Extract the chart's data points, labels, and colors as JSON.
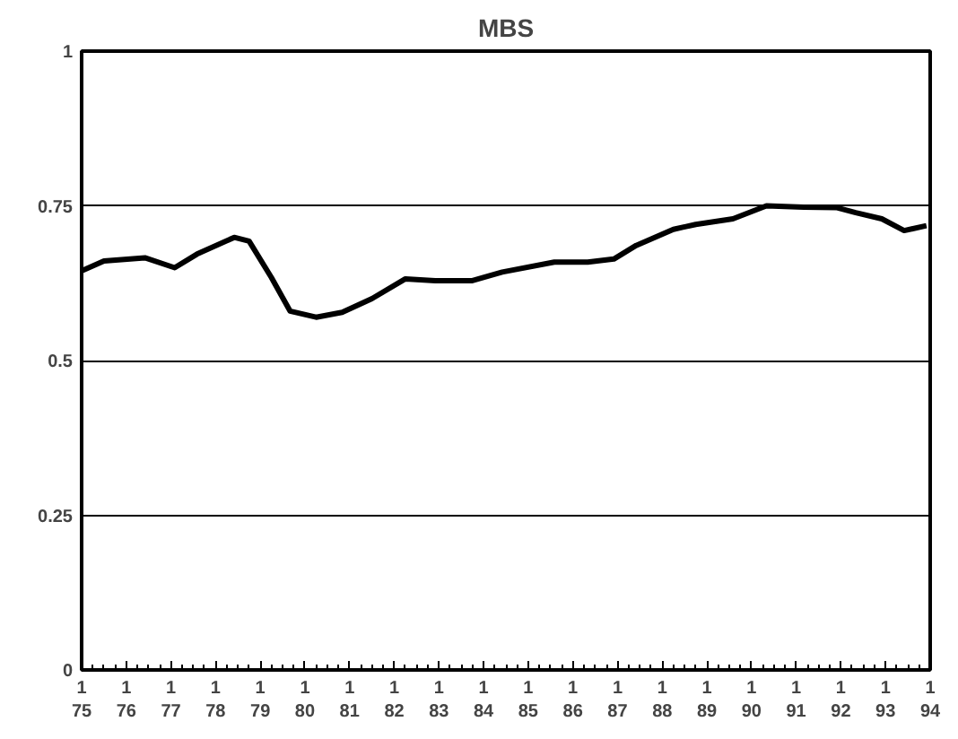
{
  "chart_data": {
    "type": "line",
    "title": "MBS",
    "x": [
      "1975-01",
      "1975-07",
      "1976-06",
      "1977-02",
      "1977-08",
      "1978-06",
      "1978-10",
      "1979-04",
      "1979-09",
      "1980-04",
      "1980-11",
      "1981-07",
      "1982-04",
      "1982-12",
      "1983-10",
      "1984-06",
      "1985-08",
      "1986-05",
      "1986-12",
      "1987-06",
      "1988-04",
      "1988-10",
      "1989-08",
      "1990-05",
      "1991-03",
      "1991-12",
      "1992-05",
      "1992-12",
      "1993-06",
      "1993-12"
    ],
    "series": [
      {
        "color": "#000000",
        "values": [
          0.645,
          0.661,
          0.666,
          0.65,
          0.672,
          0.699,
          0.693,
          0.634,
          0.58,
          0.57,
          0.578,
          0.6,
          0.632,
          0.629,
          0.629,
          0.643,
          0.659,
          0.659,
          0.664,
          0.686,
          0.712,
          0.72,
          0.729,
          0.75,
          0.748,
          0.747,
          0.739,
          0.729,
          0.71,
          0.718
        ]
      }
    ],
    "xlim": [
      "1975-01",
      "1994-01"
    ],
    "xticks": [
      {
        "value": "1975-01",
        "label": "1\n75"
      },
      {
        "value": "1976-01",
        "label": "1\n76"
      },
      {
        "value": "1977-01",
        "label": "1\n77"
      },
      {
        "value": "1978-01",
        "label": "1\n78"
      },
      {
        "value": "1979-01",
        "label": "1\n79"
      },
      {
        "value": "1980-01",
        "label": "1\n80"
      },
      {
        "value": "1981-01",
        "label": "1\n81"
      },
      {
        "value": "1982-01",
        "label": "1\n82"
      },
      {
        "value": "1983-01",
        "label": "1\n83"
      },
      {
        "value": "1984-01",
        "label": "1\n84"
      },
      {
        "value": "1985-01",
        "label": "1\n85"
      },
      {
        "value": "1986-01",
        "label": "1\n86"
      },
      {
        "value": "1987-01",
        "label": "1\n87"
      },
      {
        "value": "1988-01",
        "label": "1\n88"
      },
      {
        "value": "1989-01",
        "label": "1\n89"
      },
      {
        "value": "1990-01",
        "label": "1\n90"
      },
      {
        "value": "1991-01",
        "label": "1\n91"
      },
      {
        "value": "1992-01",
        "label": "1\n92"
      },
      {
        "value": "1993-01",
        "label": "1\n93"
      },
      {
        "value": "1994-01",
        "label": "1\n94"
      }
    ],
    "ylim": [
      0,
      1
    ],
    "yticks": [
      0,
      0.25,
      0.5,
      0.75,
      1
    ],
    "grid": "y",
    "marker": "none",
    "line_style": "solid"
  }
}
